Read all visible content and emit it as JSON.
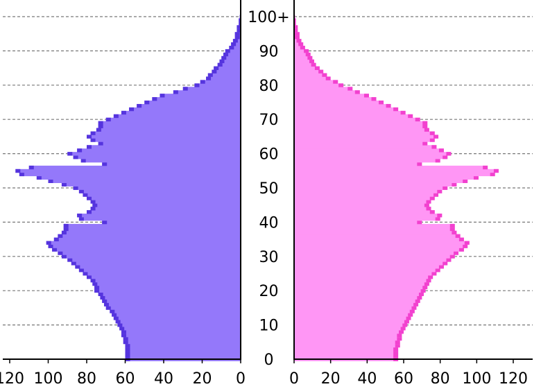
{
  "chart_data": {
    "type": "bar",
    "orientation": "horizontal-butterfly",
    "age_labels": [
      "0",
      "10",
      "20",
      "30",
      "40",
      "50",
      "60",
      "70",
      "80",
      "90",
      "100+"
    ],
    "x_ticks": [
      120,
      100,
      80,
      60,
      40,
      20,
      0
    ],
    "xlim": [
      0,
      120
    ],
    "ylim": [
      0,
      100
    ],
    "grid": true,
    "colors": {
      "male_fill": "#9478fa",
      "male_edge": "#4a28d8",
      "female_fill": "#ff96f5",
      "female_edge": "#f032c8",
      "grid": "#777777",
      "axis": "#000000"
    },
    "series": [
      {
        "side": "left",
        "values": [
          60,
          60,
          60,
          60,
          60,
          61,
          61,
          62,
          62,
          63,
          64,
          65,
          66,
          67,
          68,
          70,
          71,
          72,
          73,
          74,
          76,
          76,
          77,
          78,
          80,
          82,
          84,
          86,
          88,
          90,
          93,
          95,
          98,
          100,
          101,
          97,
          95,
          93,
          92,
          92,
          72,
          84,
          85,
          80,
          78,
          77,
          78,
          80,
          82,
          84,
          87,
          93,
          100,
          106,
          115,
          117,
          110,
          72,
          83,
          87,
          90,
          85,
          80,
          74,
          78,
          80,
          78,
          75,
          74,
          74,
          70,
          66,
          62,
          58,
          54,
          50,
          46,
          42,
          35,
          30,
          24,
          21,
          18,
          17,
          15,
          14,
          12,
          11,
          10,
          9,
          8,
          6,
          5,
          4,
          3,
          3,
          2,
          2,
          1,
          1,
          0.5
        ]
      },
      {
        "side": "right",
        "values": [
          57,
          57,
          57,
          57,
          58,
          58,
          59,
          59,
          60,
          61,
          62,
          63,
          64,
          65,
          66,
          67,
          68,
          69,
          70,
          71,
          72,
          73,
          74,
          75,
          76,
          78,
          80,
          82,
          84,
          86,
          88,
          90,
          93,
          95,
          96,
          93,
          91,
          89,
          88,
          88,
          70,
          80,
          81,
          77,
          75,
          74,
          75,
          77,
          79,
          81,
          84,
          89,
          95,
          101,
          110,
          112,
          106,
          70,
          80,
          84,
          86,
          82,
          78,
          73,
          77,
          79,
          77,
          74,
          73,
          73,
          69,
          65,
          61,
          57,
          53,
          49,
          45,
          41,
          36,
          32,
          27,
          24,
          20,
          18,
          16,
          14,
          12,
          11,
          10,
          9,
          8,
          6,
          5,
          4,
          3,
          3,
          2,
          2,
          1,
          1,
          0.5
        ]
      }
    ]
  }
}
